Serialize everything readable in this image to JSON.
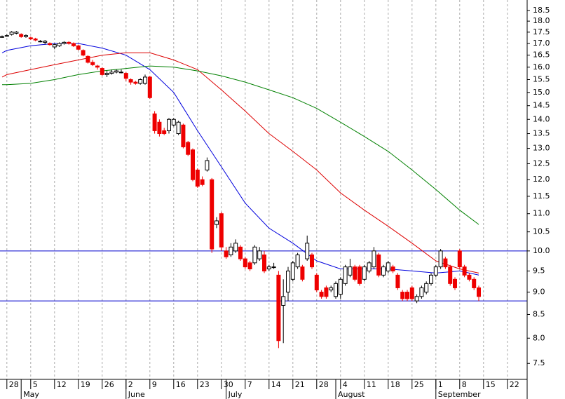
{
  "chart_data": {
    "type": "candlestick",
    "log_y": true,
    "ylim": [
      7.2,
      19
    ],
    "yticks": [
      7.5,
      {
        "value": 8,
        "label": "8.0"
      },
      8.5,
      {
        "value": 9,
        "label": "9.0"
      },
      9.5,
      {
        "value": 10,
        "label": "10.0"
      },
      10.5,
      {
        "value": 11,
        "label": "11.0"
      },
      11.5,
      {
        "value": 12,
        "label": "12.0"
      },
      12.5,
      {
        "value": 13,
        "label": "13.0"
      },
      13.5,
      {
        "value": 14,
        "label": "14.0"
      },
      14.5,
      {
        "value": 15,
        "label": "15.0"
      },
      15.5,
      {
        "value": 16,
        "label": "16.0"
      },
      16.5,
      {
        "value": 17,
        "label": "17.0"
      },
      17.5,
      {
        "value": 18,
        "label": "18.0"
      },
      18.5
    ],
    "xticks": [
      {
        "value": "Apr 28",
        "label": "28"
      },
      {
        "value": "May 5",
        "label": "5"
      },
      {
        "value": "May 12",
        "label": "12"
      },
      {
        "value": "May 19",
        "label": "19"
      },
      {
        "value": "May 26",
        "label": "26"
      },
      {
        "value": "Jun 2",
        "label": "2"
      },
      {
        "value": "Jun 9",
        "label": "9"
      },
      {
        "value": "Jun 16",
        "label": "16"
      },
      {
        "value": "Jun 23",
        "label": "23"
      },
      {
        "value": "Jun 30",
        "label": "30"
      },
      {
        "value": "Jul 7",
        "label": "7"
      },
      {
        "value": "Jul 14",
        "label": "14"
      },
      {
        "value": "Jul 21",
        "label": "21"
      },
      {
        "value": "Jul 28",
        "label": "28"
      },
      {
        "value": "Aug 4",
        "label": "4"
      },
      {
        "value": "Aug 11",
        "label": "11"
      },
      {
        "value": "Aug 18",
        "label": "18"
      },
      {
        "value": "Aug 25",
        "label": "25"
      },
      {
        "value": "Sep 1",
        "label": "1"
      },
      {
        "value": "Sep 8",
        "label": "8"
      },
      {
        "value": "Sep 15",
        "label": "15"
      },
      {
        "value": "Sep 22",
        "label": "22"
      }
    ],
    "xmonths": [
      {
        "value": "May 1",
        "label": "May"
      },
      {
        "value": "Jun 2",
        "label": "June"
      },
      {
        "value": "Jul 1",
        "label": "July"
      },
      {
        "value": "Aug 1",
        "label": "August"
      },
      {
        "value": "Sep 1",
        "label": "September"
      }
    ],
    "grid": true,
    "up_color": "#ffffff",
    "down_color": "#ee0000",
    "x": [
      "Apr 25",
      "Apr 28",
      "Apr 29",
      "Apr 30",
      "May 1",
      "May 2",
      "May 5",
      "May 6",
      "May 7",
      "May 8",
      "May 9",
      "May 12",
      "May 13",
      "May 14",
      "May 15",
      "May 16",
      "May 19",
      "May 20",
      "May 21",
      "May 22",
      "May 23",
      "May 26",
      "May 27",
      "May 28",
      "May 29",
      "May 30",
      "Jun 2",
      "Jun 3",
      "Jun 4",
      "Jun 5",
      "Jun 6",
      "Jun 9",
      "Jun 10",
      "Jun 11",
      "Jun 12",
      "Jun 13",
      "Jun 16",
      "Jun 17",
      "Jun 18",
      "Jun 19",
      "Jun 20",
      "Jun 23",
      "Jun 24",
      "Jun 25",
      "Jun 26",
      "Jun 27",
      "Jun 30",
      "Jul 1",
      "Jul 2",
      "Jul 3",
      "Jul 4",
      "Jul 7",
      "Jul 8",
      "Jul 9",
      "Jul 10",
      "Jul 11",
      "Jul 14",
      "Jul 15",
      "Jul 16",
      "Jul 17",
      "Jul 18",
      "Jul 21",
      "Jul 22",
      "Jul 23",
      "Jul 24",
      "Jul 25",
      "Jul 28",
      "Jul 29",
      "Jul 30",
      "Jul 31",
      "Aug 1",
      "Aug 4",
      "Aug 5",
      "Aug 6",
      "Aug 7",
      "Aug 8",
      "Aug 11",
      "Aug 12",
      "Aug 13",
      "Aug 14",
      "Aug 15",
      "Aug 18",
      "Aug 19",
      "Aug 20",
      "Aug 21",
      "Aug 22",
      "Aug 25",
      "Aug 26",
      "Aug 27",
      "Aug 28",
      "Aug 29",
      "Sep 1",
      "Sep 2",
      "Sep 3",
      "Sep 4",
      "Sep 5",
      "Sep 8",
      "Sep 9",
      "Sep 10",
      "Sep 11",
      "Sep 12"
    ],
    "open": [
      17.3,
      17.35,
      17.4,
      17.45,
      17.4,
      17.3,
      17.25,
      17.2,
      17.1,
      17.05,
      17.0,
      16.85,
      16.9,
      17.0,
      17.05,
      17.0,
      16.9,
      16.7,
      16.45,
      16.2,
      16.05,
      15.95,
      15.7,
      15.75,
      15.8,
      15.8,
      15.75,
      15.5,
      15.4,
      15.35,
      15.35,
      15.6,
      14.2,
      13.9,
      13.6,
      13.6,
      13.8,
      13.5,
      13.8,
      13.2,
      12.95,
      12.3,
      12.0,
      12.3,
      12.0,
      10.7,
      11.0,
      10.0,
      9.9,
      10.0,
      10.1,
      9.8,
      9.7,
      9.7,
      9.8,
      9.9,
      9.55,
      9.6,
      9.4,
      8.7,
      9.0,
      9.3,
      9.6,
      9.6,
      9.8,
      9.9,
      9.4,
      9.0,
      9.1,
      9.05,
      8.9,
      8.95,
      9.2,
      9.4,
      9.6,
      9.6,
      9.3,
      9.5,
      9.6,
      9.9,
      9.4,
      9.5,
      9.6,
      9.4,
      9.0,
      9.0,
      9.1,
      8.8,
      8.9,
      9.0,
      9.2,
      9.4,
      9.6,
      9.8,
      9.6,
      9.3,
      10.0,
      9.6,
      9.4,
      9.3,
      9.1
    ],
    "high": [
      17.35,
      17.4,
      17.55,
      17.55,
      17.45,
      17.4,
      17.3,
      17.25,
      17.15,
      17.15,
      17.05,
      17.0,
      17.05,
      17.1,
      17.1,
      17.05,
      16.95,
      16.75,
      16.5,
      16.3,
      16.1,
      16.0,
      15.85,
      15.9,
      15.9,
      15.9,
      15.8,
      15.55,
      15.45,
      15.55,
      15.7,
      15.65,
      14.3,
      14.0,
      13.7,
      14.05,
      14.05,
      13.95,
      13.85,
      13.25,
      13.0,
      12.35,
      12.1,
      12.7,
      12.05,
      10.9,
      11.05,
      10.1,
      10.2,
      10.3,
      10.15,
      9.85,
      9.75,
      10.15,
      10.1,
      10.0,
      9.65,
      9.7,
      9.5,
      9.3,
      9.6,
      9.75,
      9.95,
      9.65,
      10.4,
      9.95,
      9.45,
      9.05,
      9.15,
      9.15,
      9.25,
      9.35,
      9.65,
      9.8,
      9.65,
      9.65,
      9.65,
      9.75,
      10.1,
      9.95,
      9.65,
      9.75,
      9.65,
      9.45,
      9.05,
      9.05,
      9.15,
      8.95,
      9.15,
      9.25,
      9.45,
      9.65,
      10.05,
      9.85,
      9.65,
      9.35,
      10.05,
      9.65,
      9.45,
      9.35,
      9.15
    ],
    "low": [
      17.25,
      17.3,
      17.35,
      17.4,
      17.25,
      17.25,
      17.15,
      17.1,
      17.05,
      16.95,
      16.9,
      16.75,
      16.85,
      16.95,
      16.95,
      16.85,
      16.7,
      16.45,
      16.15,
      16.05,
      15.9,
      15.65,
      15.6,
      15.7,
      15.75,
      15.75,
      15.45,
      15.3,
      15.3,
      15.3,
      15.3,
      14.75,
      13.5,
      13.4,
      13.45,
      13.5,
      13.75,
      13.45,
      13.0,
      12.75,
      11.95,
      11.75,
      11.8,
      12.25,
      9.95,
      10.6,
      10.0,
      9.8,
      9.85,
      9.95,
      9.75,
      9.55,
      9.5,
      9.65,
      9.75,
      9.45,
      9.5,
      9.55,
      7.8,
      7.9,
      8.8,
      9.25,
      9.55,
      9.25,
      9.75,
      9.55,
      9.0,
      8.85,
      8.85,
      9.0,
      8.85,
      8.85,
      9.15,
      9.35,
      9.25,
      9.15,
      9.25,
      9.45,
      9.55,
      9.35,
      9.35,
      9.45,
      9.45,
      9.05,
      8.8,
      8.8,
      8.8,
      8.75,
      8.85,
      8.95,
      9.15,
      9.35,
      9.55,
      9.55,
      9.15,
      9.05,
      9.55,
      9.35,
      9.25,
      9.05,
      8.8
    ],
    "close": [
      17.3,
      17.35,
      17.5,
      17.5,
      17.3,
      17.35,
      17.2,
      17.15,
      17.1,
      17.1,
      16.95,
      16.95,
      17.0,
      17.05,
      17.0,
      16.9,
      16.75,
      16.5,
      16.2,
      16.1,
      16.0,
      15.7,
      15.75,
      15.8,
      15.85,
      15.8,
      15.55,
      15.4,
      15.35,
      15.5,
      15.6,
      14.8,
      13.6,
      13.5,
      13.5,
      14.0,
      14.0,
      13.9,
      13.05,
      12.8,
      12.0,
      11.8,
      11.85,
      12.6,
      10.05,
      10.8,
      10.1,
      9.85,
      10.1,
      10.2,
      9.8,
      9.6,
      9.55,
      10.1,
      10.0,
      9.5,
      9.6,
      9.6,
      7.95,
      8.9,
      9.5,
      9.7,
      9.9,
      9.3,
      10.2,
      9.6,
      9.05,
      8.9,
      8.9,
      9.1,
      9.2,
      9.3,
      9.6,
      9.6,
      9.3,
      9.2,
      9.6,
      9.7,
      10.0,
      9.4,
      9.6,
      9.7,
      9.5,
      9.1,
      8.85,
      8.85,
      8.85,
      8.9,
      9.1,
      9.2,
      9.4,
      9.6,
      10.0,
      9.6,
      9.2,
      9.1,
      9.6,
      9.4,
      9.3,
      9.1,
      8.9
    ],
    "lines": [
      {
        "color": "#0000dd",
        "x": [
          "Apr 25",
          "Apr 28",
          "May 5",
          "May 12",
          "May 19",
          "May 26",
          "Jun 2",
          "Jun 9",
          "Jun 16",
          "Jun 23",
          "Jun 30",
          "Jul 7",
          "Jul 14",
          "Jul 21",
          "Jul 28",
          "Aug 4",
          "Aug 11",
          "Aug 18",
          "Aug 25",
          "Sep 1",
          "Sep 8",
          "Sep 12"
        ],
        "values": [
          16.6,
          16.7,
          16.9,
          17.0,
          17.0,
          16.8,
          16.5,
          15.9,
          15.0,
          13.6,
          12.4,
          11.3,
          10.6,
          10.2,
          9.75,
          9.55,
          9.55,
          9.55,
          9.5,
          9.45,
          9.5,
          9.4
        ]
      },
      {
        "color": "#dd0000",
        "x": [
          "Apr 25",
          "Apr 28",
          "May 5",
          "May 12",
          "May 19",
          "May 26",
          "Jun 2",
          "Jun 9",
          "Jun 16",
          "Jun 23",
          "Jun 30",
          "Jul 7",
          "Jul 14",
          "Jul 21",
          "Jul 28",
          "Aug 4",
          "Aug 11",
          "Aug 18",
          "Aug 25",
          "Sep 1",
          "Sep 8",
          "Sep 12"
        ],
        "values": [
          15.6,
          15.7,
          15.9,
          16.1,
          16.3,
          16.5,
          16.6,
          16.6,
          16.3,
          15.9,
          15.1,
          14.3,
          13.5,
          12.9,
          12.3,
          11.6,
          11.1,
          10.65,
          10.2,
          9.75,
          9.55,
          9.45
        ]
      },
      {
        "color": "#008000",
        "x": [
          "Apr 25",
          "Apr 28",
          "May 5",
          "May 12",
          "May 19",
          "May 26",
          "Jun 2",
          "Jun 9",
          "Jun 16",
          "Jun 23",
          "Jun 30",
          "Jul 7",
          "Jul 14",
          "Jul 21",
          "Jul 28",
          "Aug 4",
          "Aug 11",
          "Aug 18",
          "Aug 25",
          "Sep 1",
          "Sep 8",
          "Sep 12"
        ],
        "values": [
          15.3,
          15.3,
          15.35,
          15.5,
          15.7,
          15.85,
          15.95,
          16.05,
          16.0,
          15.85,
          15.65,
          15.4,
          15.1,
          14.8,
          14.4,
          13.9,
          13.4,
          12.9,
          12.3,
          11.7,
          11.1,
          10.7
        ]
      }
    ],
    "hlines": {
      "color": "#0000cc",
      "values": [
        10,
        8.8
      ]
    }
  }
}
